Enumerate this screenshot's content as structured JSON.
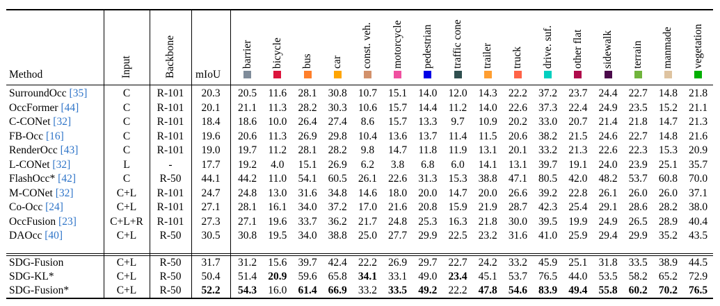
{
  "headers": {
    "method": "Method",
    "input": "Input",
    "backbone": "Backbone",
    "miou": "mIoU"
  },
  "classes": [
    {
      "name": "barrier",
      "color": "#7f8c9a"
    },
    {
      "name": "bicycle",
      "color": "#dc143c"
    },
    {
      "name": "bus",
      "color": "#ff7f2a"
    },
    {
      "name": "car",
      "color": "#ffa500"
    },
    {
      "name": "const. veh.",
      "color": "#d2916b"
    },
    {
      "name": "motorcycle",
      "color": "#f050a0"
    },
    {
      "name": "pedestrian",
      "color": "#0000e6"
    },
    {
      "name": "traffic cone",
      "color": "#2f4f4f"
    },
    {
      "name": "trailer",
      "color": "#ff9e30"
    },
    {
      "name": "truck",
      "color": "#ff6347"
    },
    {
      "name": "drive. suf.",
      "color": "#00cfbf"
    },
    {
      "name": "other flat",
      "color": "#af0a4b"
    },
    {
      "name": "sidewalk",
      "color": "#4b0a4b"
    },
    {
      "name": "terrain",
      "color": "#70b43c"
    },
    {
      "name": "manmade",
      "color": "#dec3a0"
    },
    {
      "name": "vegetation",
      "color": "#00af00"
    }
  ],
  "rows": [
    {
      "method": "SurroundOcc",
      "ref": "[35]",
      "input": "C",
      "backbone": "R-101",
      "miou": "20.3",
      "values": [
        "20.5",
        "11.6",
        "28.1",
        "30.8",
        "10.7",
        "15.1",
        "14.0",
        "12.0",
        "14.3",
        "22.2",
        "37.2",
        "23.7",
        "24.4",
        "22.7",
        "14.8",
        "21.8"
      ]
    },
    {
      "method": "OccFormer",
      "ref": "[44]",
      "input": "C",
      "backbone": "R-101",
      "miou": "20.1",
      "values": [
        "21.1",
        "11.3",
        "28.2",
        "30.3",
        "10.6",
        "15.7",
        "14.4",
        "11.2",
        "14.0",
        "22.6",
        "37.3",
        "22.4",
        "24.9",
        "23.5",
        "15.2",
        "21.1"
      ]
    },
    {
      "method": "C-CONet",
      "ref": "[32]",
      "input": "C",
      "backbone": "R-101",
      "miou": "18.4",
      "values": [
        "18.6",
        "10.0",
        "26.4",
        "27.4",
        "8.6",
        "15.7",
        "13.3",
        "9.7",
        "10.9",
        "20.2",
        "33.0",
        "20.7",
        "21.4",
        "21.8",
        "14.7",
        "21.3"
      ]
    },
    {
      "method": "FB-Occ",
      "ref": "[16]",
      "input": "C",
      "backbone": "R-101",
      "miou": "19.6",
      "values": [
        "20.6",
        "11.3",
        "26.9",
        "29.8",
        "10.4",
        "13.6",
        "13.7",
        "11.4",
        "11.5",
        "20.6",
        "38.2",
        "21.5",
        "24.6",
        "22.7",
        "14.8",
        "21.6"
      ]
    },
    {
      "method": "RenderOcc",
      "ref": "[43]",
      "input": "C",
      "backbone": "R-101",
      "miou": "19.0",
      "values": [
        "19.7",
        "11.2",
        "28.1",
        "28.2",
        "9.8",
        "14.7",
        "11.8",
        "11.9",
        "13.1",
        "20.1",
        "33.2",
        "21.3",
        "22.6",
        "22.3",
        "15.3",
        "20.9"
      ]
    },
    {
      "method": "L-CONet",
      "ref": "[32]",
      "input": "L",
      "backbone": "-",
      "miou": "17.7",
      "values": [
        "19.2",
        "4.0",
        "15.1",
        "26.9",
        "6.2",
        "3.8",
        "6.8",
        "6.0",
        "14.1",
        "13.1",
        "39.7",
        "19.1",
        "24.0",
        "23.9",
        "25.1",
        "35.7"
      ]
    },
    {
      "method": "FlashOcc*",
      "ref": "[42]",
      "input": "C",
      "backbone": "R-50",
      "miou": "44.1",
      "values": [
        "44.2",
        "11.0",
        "54.1",
        "60.5",
        "26.1",
        "22.6",
        "31.3",
        "15.3",
        "38.8",
        "47.1",
        "80.5",
        "42.0",
        "48.2",
        "53.7",
        "60.8",
        "70.0"
      ]
    },
    {
      "method": "M-CONet",
      "ref": "[32]",
      "input": "C+L",
      "backbone": "R-101",
      "miou": "24.7",
      "values": [
        "24.8",
        "13.0",
        "31.6",
        "34.8",
        "14.6",
        "18.0",
        "20.0",
        "14.7",
        "20.0",
        "26.6",
        "39.2",
        "22.8",
        "26.1",
        "26.0",
        "26.0",
        "37.1"
      ]
    },
    {
      "method": "Co-Occ",
      "ref": "[24]",
      "input": "C+L",
      "backbone": "R-101",
      "miou": "27.1",
      "values": [
        "28.1",
        "16.1",
        "34.0",
        "37.2",
        "17.0",
        "21.6",
        "20.8",
        "15.9",
        "21.9",
        "28.7",
        "42.3",
        "25.4",
        "29.1",
        "28.6",
        "28.2",
        "38.0"
      ]
    },
    {
      "method": "OccFusion",
      "ref": "[23]",
      "input": "C+L+R",
      "backbone": "R-101",
      "miou": "27.3",
      "values": [
        "27.1",
        "19.6",
        "33.7",
        "36.2",
        "21.7",
        "24.8",
        "25.3",
        "16.3",
        "21.8",
        "30.0",
        "39.5",
        "19.9",
        "24.9",
        "26.5",
        "28.9",
        "40.4"
      ]
    },
    {
      "method": "DAOcc",
      "ref": "[40]",
      "input": "C+L",
      "backbone": "R-50",
      "miou": "30.5",
      "values": [
        "30.8",
        "19.5",
        "34.0",
        "38.8",
        "25.0",
        "27.7",
        "29.9",
        "22.5",
        "23.2",
        "31.6",
        "41.0",
        "25.9",
        "29.4",
        "29.9",
        "35.2",
        "43.5"
      ]
    },
    {
      "method": "SDG-Fusion",
      "ref": "",
      "input": "C+L",
      "backbone": "R-50",
      "miou": "31.7",
      "values": [
        "31.2",
        "15.6",
        "39.7",
        "42.4",
        "22.2",
        "26.9",
        "29.7",
        "22.7",
        "24.2",
        "33.2",
        "45.9",
        "25.1",
        "31.8",
        "33.5",
        "38.9",
        "44.5"
      ]
    },
    {
      "method": "SDG-KL*",
      "ref": "",
      "input": "C+L",
      "backbone": "R-50",
      "miou": "50.4",
      "values": [
        "51.4",
        "20.9",
        "59.6",
        "65.8",
        "34.1",
        "33.1",
        "49.0",
        "23.4",
        "45.1",
        "53.7",
        "76.5",
        "44.0",
        "53.5",
        "58.2",
        "65.2",
        "72.9"
      ]
    },
    {
      "method": "SDG-Fusion*",
      "ref": "",
      "input": "C+L",
      "backbone": "R-50",
      "miou": "52.2",
      "values": [
        "54.3",
        "16.0",
        "61.4",
        "66.9",
        "33.2",
        "33.5",
        "49.2",
        "22.2",
        "47.8",
        "54.6",
        "83.9",
        "49.4",
        "55.8",
        "60.2",
        "70.2",
        "76.5"
      ]
    }
  ],
  "bold": [
    [
      12,
      1
    ],
    [
      12,
      4
    ],
    [
      12,
      7
    ],
    [
      13,
      -1
    ],
    [
      13,
      0
    ],
    [
      13,
      2
    ],
    [
      13,
      3
    ],
    [
      13,
      5
    ],
    [
      13,
      6
    ],
    [
      13,
      8
    ],
    [
      13,
      9
    ],
    [
      13,
      10
    ],
    [
      13,
      11
    ],
    [
      13,
      12
    ],
    [
      13,
      13
    ],
    [
      13,
      14
    ],
    [
      13,
      15
    ]
  ]
}
